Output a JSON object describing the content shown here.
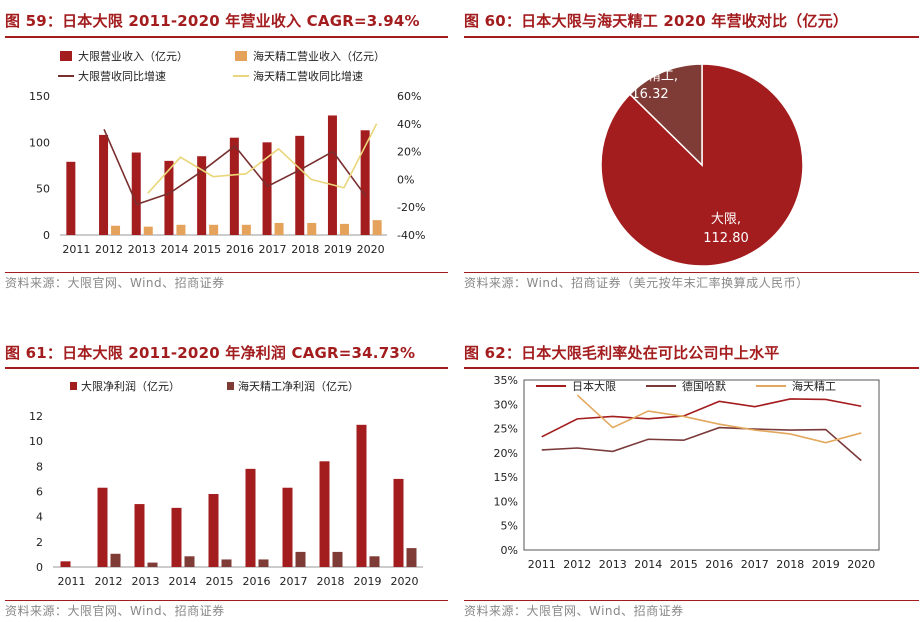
{
  "charts": [
    {
      "title": "图 59：日本大限 2011-2020 年营业收入 CAGR=3.94%",
      "source": "资料来源：大限官网、Wind、招商证券",
      "chart_data": {
        "type": "bar+line",
        "categories": [
          "2011",
          "2012",
          "2013",
          "2014",
          "2015",
          "2016",
          "2017",
          "2018",
          "2019",
          "2020"
        ],
        "series": [
          {
            "name": "大限营业收入（亿元）",
            "type": "bar",
            "axis": "left",
            "color": "#a31c1e",
            "values": [
              79,
              108,
              89,
              80,
              85,
              105,
              100,
              107,
              129,
              113
            ]
          },
          {
            "name": "海天精工营业收入（亿元）",
            "type": "bar",
            "axis": "left",
            "color": "#e4a25a",
            "values": [
              null,
              10,
              9,
              11,
              11,
              11,
              13,
              13,
              12,
              16
            ]
          },
          {
            "name": "大限营收同比增速",
            "type": "line",
            "axis": "right",
            "color": "#7a2f2f",
            "values": [
              null,
              36,
              -18,
              -10,
              6,
              24,
              -5,
              7,
              20,
              -12
            ]
          },
          {
            "name": "海天精工营收同比增速",
            "type": "line",
            "axis": "right",
            "color": "#ead67a",
            "values": [
              null,
              null,
              -10,
              16,
              2,
              4,
              22,
              0,
              -6,
              40
            ]
          }
        ],
        "y_left": {
          "ticks": [
            "0",
            "50",
            "100",
            "150"
          ],
          "min": 0,
          "max": 150
        },
        "y_right": {
          "ticks": [
            "-40%",
            "-20%",
            "0%",
            "20%",
            "40%",
            "60%"
          ],
          "min": -40,
          "max": 60
        },
        "legend": "top"
      }
    },
    {
      "title": "图 60：日本大限与海天精工 2020 年营收对比（亿元）",
      "source": "资料来源：Wind、招商证券（美元按年末汇率换算成人民币）",
      "chart_data": {
        "type": "pie",
        "slices": [
          {
            "name": "大限",
            "value": 112.8,
            "label_name": "大限,",
            "label_value": "112.80",
            "color": "#a31c1e"
          },
          {
            "name": "海天精工",
            "value": 16.32,
            "label_name": "海天精工,",
            "label_value": "16.32",
            "color": "#7f3b35"
          }
        ]
      }
    },
    {
      "title": "图 61：日本大限 2011-2020 年净利润 CAGR=34.73%",
      "source": "资料来源：大限官网、Wind、招商证券",
      "chart_data": {
        "type": "bar",
        "categories": [
          "2011",
          "2012",
          "2013",
          "2014",
          "2015",
          "2016",
          "2017",
          "2018",
          "2019",
          "2020"
        ],
        "series": [
          {
            "name": "大限净利润（亿元）",
            "color": "#a31c1e",
            "values": [
              0.45,
              6.3,
              5.0,
              4.7,
              5.8,
              7.8,
              6.3,
              8.4,
              11.3,
              7.0
            ]
          },
          {
            "name": "海天精工净利润（亿元）",
            "color": "#7f3b35",
            "values": [
              null,
              1.05,
              0.35,
              0.85,
              0.6,
              0.6,
              1.2,
              1.2,
              0.85,
              1.5
            ]
          }
        ],
        "y_ticks": [
          "0",
          "2",
          "4",
          "6",
          "8",
          "10",
          "12"
        ],
        "ylim": [
          0,
          12
        ],
        "legend": "top"
      }
    },
    {
      "title": "图 62：日本大限毛利率处在可比公司中上水平",
      "source": "资料来源：大限官网、Wind、招商证券",
      "chart_data": {
        "type": "line",
        "categories": [
          "2011",
          "2012",
          "2013",
          "2014",
          "2015",
          "2016",
          "2017",
          "2018",
          "2019",
          "2020"
        ],
        "series": [
          {
            "name": "日本大限",
            "color": "#a31c1e",
            "values": [
              23.3,
              27.0,
              27.5,
              27.0,
              27.6,
              30.6,
              29.5,
              31.1,
              31.0,
              29.6
            ]
          },
          {
            "name": "德国哈默",
            "color": "#7a3a3a",
            "values": [
              20.6,
              21.0,
              20.3,
              22.8,
              22.6,
              25.2,
              24.9,
              24.7,
              24.8,
              18.4
            ]
          },
          {
            "name": "海天精工",
            "color": "#e2a85d",
            "values": [
              null,
              31.9,
              25.2,
              28.6,
              27.5,
              25.9,
              24.7,
              23.9,
              22.1,
              24.1
            ]
          }
        ],
        "y_ticks": [
          "0%",
          "5%",
          "10%",
          "15%",
          "20%",
          "25%",
          "30%",
          "35%"
        ],
        "ylim": [
          0,
          35
        ],
        "legend": "top"
      }
    }
  ]
}
